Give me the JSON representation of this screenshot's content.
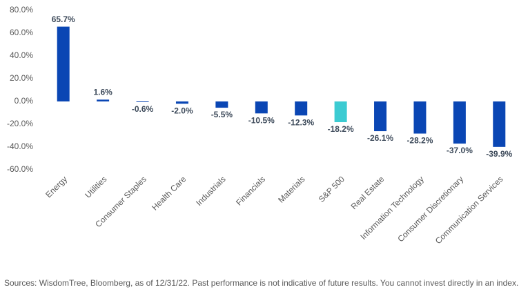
{
  "chart_data": {
    "type": "bar",
    "categories": [
      "Energy",
      "Utilities",
      "Consumer Staples",
      "Health Care",
      "Industrials",
      "Financials",
      "Materials",
      "S&P 500",
      "Real Estate",
      "Information Technology",
      "Consumer Discretionary",
      "Communication Services"
    ],
    "values": [
      65.7,
      1.6,
      -0.6,
      -2.0,
      -5.5,
      -10.5,
      -12.3,
      -18.2,
      -26.1,
      -28.2,
      -37.0,
      -39.9
    ],
    "value_labels": [
      "65.7%",
      "1.6%",
      "-0.6%",
      "-2.0%",
      "-5.5%",
      "-10.5%",
      "-12.3%",
      "-18.2%",
      "-26.1%",
      "-28.2%",
      "-37.0%",
      "-39.9%"
    ],
    "colors": [
      "#0a46b4",
      "#0a46b4",
      "#0a46b4",
      "#0a46b4",
      "#0a46b4",
      "#0a46b4",
      "#0a46b4",
      "#3ccbd2",
      "#0a46b4",
      "#0a46b4",
      "#0a46b4",
      "#0a46b4"
    ],
    "ylim": [
      -60,
      80
    ],
    "yticks": [
      {
        "value": 80,
        "label": "80.0%"
      },
      {
        "value": 60,
        "label": "60.0%"
      },
      {
        "value": 40,
        "label": "40.0%"
      },
      {
        "value": 20,
        "label": "20.0%"
      },
      {
        "value": 0,
        "label": "0.0%"
      },
      {
        "value": -20,
        "label": "-20.0%"
      },
      {
        "value": -40,
        "label": "-40.0%"
      },
      {
        "value": -60,
        "label": "-60.0%"
      }
    ],
    "grid": false,
    "source": "Sources: WisdomTree, Bloomberg, as of 12/31/22. Past performance is not indicative of future results. You cannot invest directly in an index."
  }
}
